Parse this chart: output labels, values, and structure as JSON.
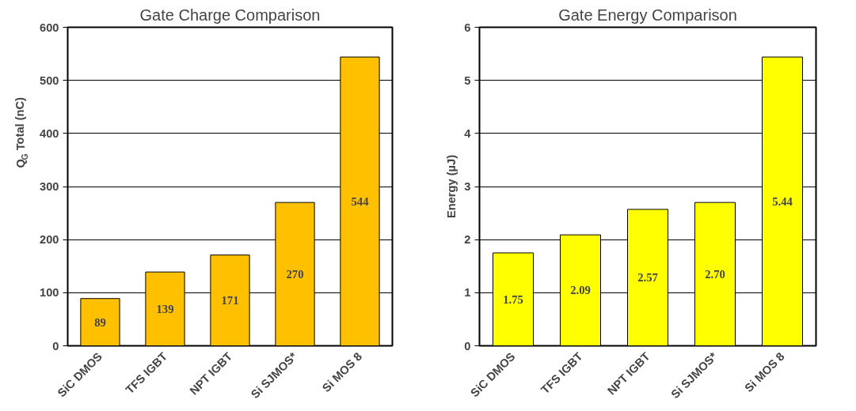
{
  "chart_data": [
    {
      "type": "bar",
      "title": "Gate Charge Comparison",
      "ylabel": "Q$_{G}$ Total (nC)",
      "categories": [
        "SiC DMOS",
        "TFS IGBT",
        "NPT IGBT",
        "Si SJMOS*",
        "Si MOS 8"
      ],
      "values": [
        89,
        139,
        171,
        270,
        544
      ],
      "color": "#ffc000",
      "ylim": [
        0,
        600
      ],
      "yticks": [
        0,
        100,
        200,
        300,
        400,
        500,
        600
      ],
      "grid": "y",
      "data_labels": true
    },
    {
      "type": "bar",
      "title": "Gate Energy Comparison",
      "ylabel": "Energy (µJ)",
      "categories": [
        "SiC DMOS",
        "TFS IGBT",
        "NPT IGBT",
        "Si SJMOS*",
        "Si MOS 8"
      ],
      "values": [
        1.75,
        2.09,
        2.57,
        2.7,
        5.44
      ],
      "value_labels": [
        "1.75",
        "2.09",
        "2.57",
        "2.70",
        "5.44"
      ],
      "color": "#ffff00",
      "ylim": [
        0,
        6
      ],
      "yticks": [
        0,
        1,
        2,
        3,
        4,
        5,
        6
      ],
      "grid": "y",
      "data_labels": true
    }
  ]
}
